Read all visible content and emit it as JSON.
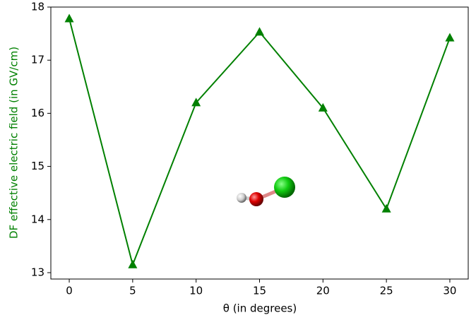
{
  "chart_data": {
    "type": "line",
    "x_label": "θ (in degrees)",
    "y_label": "DF effective electric field (in GV/cm)",
    "x": [
      0,
      5,
      10,
      15,
      20,
      25,
      30
    ],
    "series": [
      {
        "color": "#008000",
        "values": [
          17.78,
          13.15,
          16.2,
          17.53,
          16.1,
          14.2,
          17.42
        ]
      }
    ],
    "xlim": [
      -1.45,
      31.45
    ],
    "ylim": [
      12.88,
      18.0
    ],
    "xticks": [
      0,
      5,
      10,
      15,
      20,
      25,
      30
    ],
    "yticks": [
      13,
      14,
      15,
      16,
      17,
      18
    ],
    "y_label_color": "#008000",
    "marker": "triangle"
  }
}
